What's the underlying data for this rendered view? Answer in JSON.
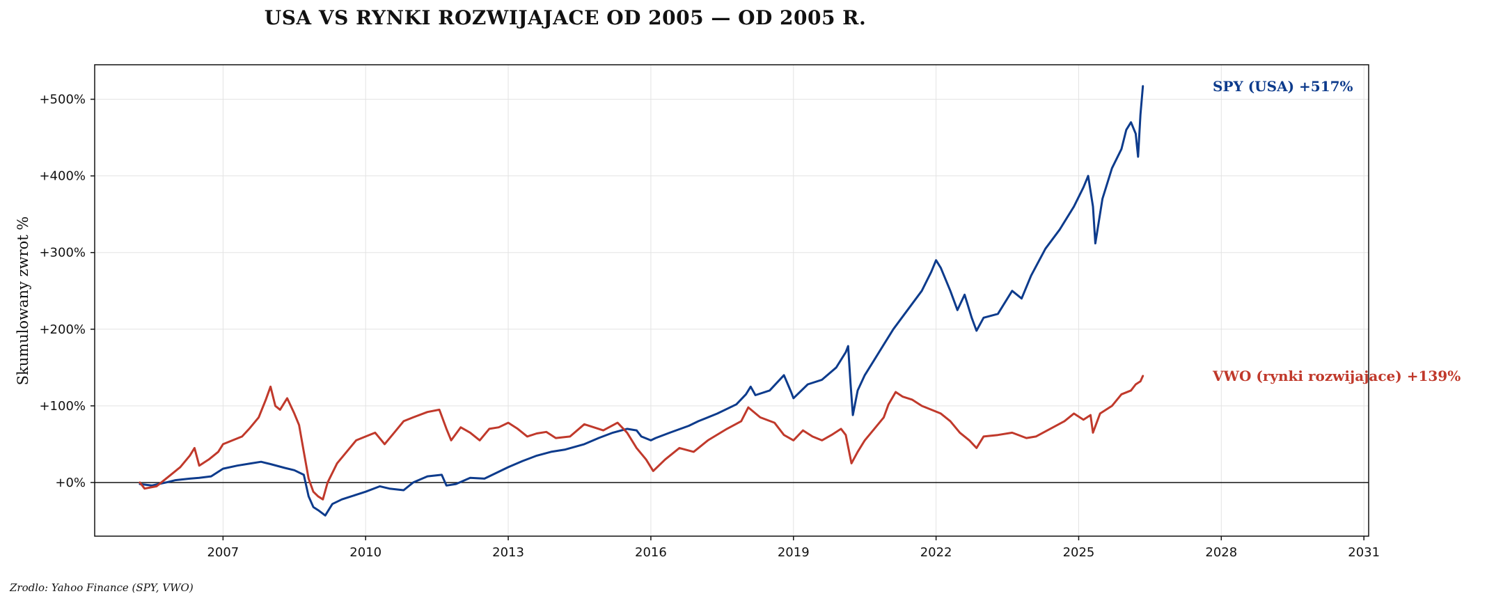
{
  "chart_data": {
    "type": "line",
    "title": "USA VS RYNKI ROZWIJAJACE OD 2005 — OD 2005 R.",
    "ylabel": "Skumulowany zwrot %",
    "xlabel": "",
    "source": "Zrodlo: Yahoo Finance (SPY, VWO)",
    "xlim": [
      2004.3,
      2031.1
    ],
    "ylim": [
      -70,
      545
    ],
    "x_ticks": [
      2007,
      2010,
      2013,
      2016,
      2019,
      2022,
      2025,
      2028,
      2031
    ],
    "x_tick_labels": [
      "2007",
      "2010",
      "2013",
      "2016",
      "2019",
      "2022",
      "2025",
      "2028",
      "2031"
    ],
    "y_ticks": [
      0,
      100,
      200,
      300,
      400,
      500
    ],
    "y_tick_labels": [
      "+0%",
      "+100%",
      "+200%",
      "+300%",
      "+400%",
      "+500%"
    ],
    "grid": true,
    "zero_line": true,
    "series": [
      {
        "name": "SPY (USA)",
        "end_label": "SPY (USA)  +517%",
        "color": "#0d3b8c",
        "points": [
          [
            2005.25,
            -2
          ],
          [
            2005.5,
            -4
          ],
          [
            2005.8,
            0
          ],
          [
            2006.0,
            3
          ],
          [
            2006.3,
            5
          ],
          [
            2006.5,
            6
          ],
          [
            2006.75,
            8
          ],
          [
            2007.0,
            18
          ],
          [
            2007.3,
            22
          ],
          [
            2007.6,
            25
          ],
          [
            2007.8,
            27
          ],
          [
            2008.0,
            24
          ],
          [
            2008.3,
            19
          ],
          [
            2008.5,
            16
          ],
          [
            2008.7,
            10
          ],
          [
            2008.8,
            -18
          ],
          [
            2008.9,
            -32
          ],
          [
            2009.0,
            -36
          ],
          [
            2009.15,
            -43
          ],
          [
            2009.3,
            -28
          ],
          [
            2009.5,
            -22
          ],
          [
            2009.8,
            -16
          ],
          [
            2010.0,
            -12
          ],
          [
            2010.3,
            -5
          ],
          [
            2010.5,
            -8
          ],
          [
            2010.8,
            -10
          ],
          [
            2011.0,
            0
          ],
          [
            2011.3,
            8
          ],
          [
            2011.6,
            10
          ],
          [
            2011.7,
            -4
          ],
          [
            2011.9,
            -2
          ],
          [
            2012.2,
            6
          ],
          [
            2012.5,
            5
          ],
          [
            2012.8,
            14
          ],
          [
            2013.0,
            20
          ],
          [
            2013.3,
            28
          ],
          [
            2013.6,
            35
          ],
          [
            2013.9,
            40
          ],
          [
            2014.2,
            43
          ],
          [
            2014.6,
            50
          ],
          [
            2014.9,
            58
          ],
          [
            2015.2,
            65
          ],
          [
            2015.5,
            70
          ],
          [
            2015.7,
            68
          ],
          [
            2015.8,
            60
          ],
          [
            2016.0,
            55
          ],
          [
            2016.1,
            58
          ],
          [
            2016.4,
            65
          ],
          [
            2016.8,
            74
          ],
          [
            2017.0,
            80
          ],
          [
            2017.4,
            90
          ],
          [
            2017.8,
            102
          ],
          [
            2018.0,
            115
          ],
          [
            2018.1,
            125
          ],
          [
            2018.2,
            114
          ],
          [
            2018.5,
            120
          ],
          [
            2018.8,
            140
          ],
          [
            2018.95,
            118
          ],
          [
            2019.0,
            110
          ],
          [
            2019.3,
            128
          ],
          [
            2019.6,
            134
          ],
          [
            2019.9,
            150
          ],
          [
            2020.1,
            170
          ],
          [
            2020.15,
            178
          ],
          [
            2020.2,
            130
          ],
          [
            2020.25,
            88
          ],
          [
            2020.35,
            120
          ],
          [
            2020.5,
            140
          ],
          [
            2020.7,
            160
          ],
          [
            2020.9,
            180
          ],
          [
            2021.1,
            200
          ],
          [
            2021.4,
            225
          ],
          [
            2021.7,
            250
          ],
          [
            2021.9,
            275
          ],
          [
            2022.0,
            290
          ],
          [
            2022.1,
            280
          ],
          [
            2022.3,
            250
          ],
          [
            2022.45,
            225
          ],
          [
            2022.6,
            245
          ],
          [
            2022.75,
            215
          ],
          [
            2022.85,
            198
          ],
          [
            2023.0,
            215
          ],
          [
            2023.3,
            220
          ],
          [
            2023.6,
            250
          ],
          [
            2023.8,
            240
          ],
          [
            2024.0,
            270
          ],
          [
            2024.3,
            305
          ],
          [
            2024.6,
            330
          ],
          [
            2024.9,
            360
          ],
          [
            2025.1,
            385
          ],
          [
            2025.2,
            400
          ],
          [
            2025.3,
            360
          ],
          [
            2025.35,
            312
          ],
          [
            2025.5,
            370
          ],
          [
            2025.7,
            410
          ],
          [
            2025.9,
            435
          ],
          [
            2026.0,
            460
          ],
          [
            2026.1,
            470
          ],
          [
            2026.2,
            455
          ],
          [
            2026.25,
            425
          ],
          [
            2026.3,
            480
          ],
          [
            2026.35,
            517
          ]
        ]
      },
      {
        "name": "VWO (rynki rozwijajace)",
        "end_label": "VWO (rynki rozwijajace)  +139%",
        "color": "#c0392b",
        "points": [
          [
            2005.25,
            0
          ],
          [
            2005.35,
            -8
          ],
          [
            2005.6,
            -5
          ],
          [
            2005.9,
            10
          ],
          [
            2006.1,
            20
          ],
          [
            2006.3,
            35
          ],
          [
            2006.4,
            45
          ],
          [
            2006.5,
            22
          ],
          [
            2006.7,
            30
          ],
          [
            2006.9,
            40
          ],
          [
            2007.0,
            50
          ],
          [
            2007.2,
            55
          ],
          [
            2007.4,
            60
          ],
          [
            2007.55,
            70
          ],
          [
            2007.75,
            85
          ],
          [
            2007.9,
            108
          ],
          [
            2008.0,
            125
          ],
          [
            2008.1,
            100
          ],
          [
            2008.2,
            95
          ],
          [
            2008.35,
            110
          ],
          [
            2008.5,
            90
          ],
          [
            2008.6,
            75
          ],
          [
            2008.7,
            40
          ],
          [
            2008.8,
            5
          ],
          [
            2008.9,
            -12
          ],
          [
            2009.0,
            -18
          ],
          [
            2009.1,
            -22
          ],
          [
            2009.2,
            0
          ],
          [
            2009.4,
            25
          ],
          [
            2009.6,
            40
          ],
          [
            2009.8,
            55
          ],
          [
            2010.0,
            60
          ],
          [
            2010.2,
            65
          ],
          [
            2010.4,
            50
          ],
          [
            2010.6,
            65
          ],
          [
            2010.8,
            80
          ],
          [
            2011.0,
            85
          ],
          [
            2011.3,
            92
          ],
          [
            2011.55,
            95
          ],
          [
            2011.7,
            70
          ],
          [
            2011.8,
            55
          ],
          [
            2012.0,
            72
          ],
          [
            2012.2,
            65
          ],
          [
            2012.4,
            55
          ],
          [
            2012.6,
            70
          ],
          [
            2012.8,
            72
          ],
          [
            2013.0,
            78
          ],
          [
            2013.2,
            70
          ],
          [
            2013.4,
            60
          ],
          [
            2013.6,
            64
          ],
          [
            2013.8,
            66
          ],
          [
            2014.0,
            58
          ],
          [
            2014.3,
            60
          ],
          [
            2014.6,
            76
          ],
          [
            2014.8,
            72
          ],
          [
            2015.0,
            68
          ],
          [
            2015.3,
            78
          ],
          [
            2015.5,
            65
          ],
          [
            2015.7,
            45
          ],
          [
            2015.9,
            30
          ],
          [
            2016.05,
            15
          ],
          [
            2016.3,
            30
          ],
          [
            2016.6,
            45
          ],
          [
            2016.9,
            40
          ],
          [
            2017.2,
            55
          ],
          [
            2017.6,
            70
          ],
          [
            2017.9,
            80
          ],
          [
            2018.05,
            98
          ],
          [
            2018.3,
            85
          ],
          [
            2018.6,
            78
          ],
          [
            2018.8,
            62
          ],
          [
            2019.0,
            55
          ],
          [
            2019.2,
            68
          ],
          [
            2019.4,
            60
          ],
          [
            2019.6,
            55
          ],
          [
            2019.8,
            62
          ],
          [
            2020.0,
            70
          ],
          [
            2020.1,
            62
          ],
          [
            2020.22,
            25
          ],
          [
            2020.35,
            40
          ],
          [
            2020.5,
            55
          ],
          [
            2020.7,
            70
          ],
          [
            2020.9,
            85
          ],
          [
            2021.0,
            102
          ],
          [
            2021.15,
            118
          ],
          [
            2021.3,
            112
          ],
          [
            2021.5,
            108
          ],
          [
            2021.7,
            100
          ],
          [
            2021.9,
            95
          ],
          [
            2022.1,
            90
          ],
          [
            2022.3,
            80
          ],
          [
            2022.5,
            65
          ],
          [
            2022.7,
            55
          ],
          [
            2022.85,
            45
          ],
          [
            2023.0,
            60
          ],
          [
            2023.3,
            62
          ],
          [
            2023.6,
            65
          ],
          [
            2023.9,
            58
          ],
          [
            2024.1,
            60
          ],
          [
            2024.4,
            70
          ],
          [
            2024.7,
            80
          ],
          [
            2024.9,
            90
          ],
          [
            2025.1,
            82
          ],
          [
            2025.25,
            88
          ],
          [
            2025.3,
            65
          ],
          [
            2025.45,
            90
          ],
          [
            2025.7,
            100
          ],
          [
            2025.9,
            115
          ],
          [
            2026.1,
            120
          ],
          [
            2026.2,
            128
          ],
          [
            2026.3,
            132
          ],
          [
            2026.35,
            139
          ]
        ]
      }
    ]
  }
}
